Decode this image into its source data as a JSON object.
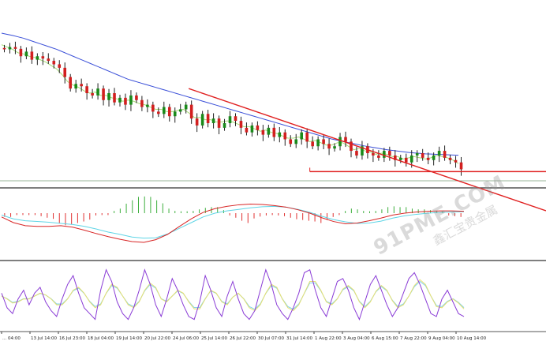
{
  "chart_data": {
    "type": "candlestick",
    "x_ticks": [
      "... 04:00",
      "13 Jul 14:00",
      "16 Jul 23:00",
      "18 Jul 04:00",
      "19 Jul 14:00",
      "20 Jul 22:00",
      "24 Jul 06:00",
      "25 Jul 14:00",
      "26 Jul 22:00",
      "30 Jul 07:00",
      "31 Jul 14:00",
      "1 Aug 22:00",
      "3 Aug 04:00",
      "6 Aug 15:00",
      "7 Aug 22:00",
      "9 Aug 04:00",
      "10 Aug 14:00"
    ],
    "price_panel": {
      "close": [
        58,
        59,
        58.2,
        55,
        57,
        53.5,
        55,
        54,
        53,
        51.5,
        50,
        46,
        41,
        43,
        42,
        39,
        38,
        41,
        36,
        39,
        35,
        37,
        34,
        38,
        36,
        33,
        34,
        31,
        30,
        33,
        29,
        31,
        32,
        34,
        28,
        25,
        30,
        26,
        28,
        24,
        26,
        29,
        27,
        24,
        22,
        25,
        23,
        21,
        24,
        20,
        22,
        19,
        17,
        19,
        22,
        18,
        16,
        19,
        17,
        15,
        16,
        20,
        18,
        14,
        12,
        16,
        13,
        12,
        11,
        14,
        12,
        10,
        11,
        9,
        12,
        13,
        11,
        10,
        12,
        14,
        11,
        10,
        9,
        6
      ],
      "ma_fast": [
        60,
        59,
        58,
        56.5,
        56,
        55,
        54.5,
        53.5,
        52.5,
        51,
        49.5,
        47,
        44,
        42.5,
        41.5,
        40,
        39,
        39.5,
        38,
        38,
        37,
        36.5,
        35.5,
        36,
        35.5,
        34.5,
        34,
        33,
        32,
        32,
        31,
        31,
        31.5,
        32,
        30.5,
        28.5,
        28.5,
        27.5,
        27.5,
        26.5,
        26.5,
        27,
        26.5,
        25.5,
        24.5,
        24.5,
        23.5,
        22.5,
        23,
        22,
        21.5,
        20.5,
        19.5,
        19.5,
        20,
        19,
        18,
        18.5,
        17.5,
        16.5,
        16.5,
        17.5,
        17.5,
        16,
        14.5,
        15,
        14,
        13.5,
        12.5,
        13,
        12.5,
        11.5,
        11.5,
        10.5,
        11,
        11.5,
        11,
        10.5,
        11,
        12,
        11.5,
        11,
        10,
        8.5
      ],
      "ma_slow": [
        65,
        64.5,
        64,
        63.4,
        62.8,
        62,
        61.2,
        60.4,
        59.6,
        58.8,
        58,
        57,
        56,
        55,
        54,
        53,
        52,
        51,
        50,
        49,
        48,
        47,
        46,
        45,
        44.3,
        43.6,
        42.9,
        42.2,
        41.5,
        40.8,
        40.1,
        39.4,
        38.7,
        38,
        37.3,
        36.6,
        35.9,
        35.2,
        34.5,
        33.8,
        33.1,
        32.4,
        31.7,
        31,
        30.3,
        29.6,
        28.9,
        28.2,
        27.5,
        26.8,
        26.1,
        25.4,
        24.7,
        24,
        23.3,
        22.6,
        21.9,
        21.2,
        20.5,
        19.8,
        19.1,
        18.6,
        18.1,
        17.6,
        17.1,
        16.6,
        16.1,
        15.7,
        15.3,
        14.9,
        14.5,
        14.2,
        13.9,
        13.6,
        13.3,
        13.1,
        12.9,
        12.7,
        12.6,
        12.5,
        12.4,
        12.3,
        12.2,
        12.1
      ],
      "trendline": {
        "from": [
          34,
          41
        ],
        "to": [
          92,
          0
        ]
      },
      "support": {
        "from": [
          56,
          5
        ],
        "to": [
          92,
          5
        ]
      }
    },
    "macd_panel": {
      "histogram": [
        -1,
        -1,
        -0.5,
        -0.5,
        -0.5,
        -0.5,
        -0.8,
        -1.2,
        -1.5,
        -2.6,
        -3.2,
        -3,
        -2.6,
        -2.2,
        -1.7,
        -0.6,
        -0.5,
        -0.5,
        0.6,
        1.2,
        2.5,
        3.4,
        4.3,
        4.4,
        4.3,
        3.4,
        2.6,
        1.2,
        0.6,
        0.5,
        0.5,
        0.6,
        1,
        1.4,
        1.6,
        1.6,
        0.8,
        -0.6,
        -1.2,
        -2,
        -2.6,
        -1.4,
        -0.9,
        -0.6,
        -0.5,
        -0.6,
        -0.8,
        -1.2,
        -1.6,
        -1.8,
        -2,
        -2.2,
        -2.6,
        -1.8,
        -1,
        -0.5,
        0.6,
        1.2,
        1,
        0.6,
        0.5,
        0.6,
        1,
        1.6,
        1.8,
        1.6,
        1.6,
        1.2,
        1,
        1,
        0.8,
        0.6,
        0.5,
        -0.6,
        -0.8,
        -1
      ],
      "signal": [
        -0.5,
        -1.5,
        -2,
        -2.2,
        -2.4,
        -2.7,
        -3,
        -3.5,
        -4.2,
        -5,
        -5.6,
        -6.3,
        -6.6,
        -6.5,
        -5.5,
        -4,
        -2.5,
        -1,
        0,
        0.6,
        1,
        1.4,
        1.7,
        1.8,
        1.6,
        1,
        0.2,
        -0.8,
        -1.7,
        -2.3,
        -2.7,
        -2.6,
        -2.1,
        -1.3,
        -0.7,
        -0.3,
        0,
        0.2,
        0.3,
        0.4
      ],
      "main": [
        -1,
        -2.5,
        -3.3,
        -3.5,
        -3.5,
        -3.3,
        -3.7,
        -4.5,
        -5.4,
        -6.2,
        -6.9,
        -7.5,
        -7.7,
        -7,
        -5.6,
        -3.5,
        -1.5,
        0.2,
        1.2,
        1.8,
        2.2,
        2.4,
        2.3,
        2,
        1.6,
        0.9,
        0,
        -1.2,
        -2.2,
        -2.8,
        -2.6,
        -2,
        -1.3,
        -0.5,
        0,
        0.3,
        0.5,
        0.6,
        0.6,
        0.5
      ]
    },
    "stoch_panel": {
      "main": [
        55,
        30,
        20,
        45,
        60,
        35,
        55,
        65,
        40,
        25,
        15,
        45,
        70,
        85,
        55,
        30,
        20,
        10,
        60,
        95,
        75,
        40,
        20,
        10,
        30,
        60,
        95,
        70,
        35,
        15,
        45,
        80,
        60,
        35,
        15,
        10,
        40,
        85,
        60,
        30,
        15,
        50,
        75,
        45,
        20,
        10,
        25,
        60,
        95,
        70,
        35,
        20,
        10,
        30,
        55,
        90,
        95,
        60,
        30,
        15,
        45,
        75,
        80,
        60,
        30,
        10,
        40,
        70,
        85,
        60,
        35,
        15,
        30,
        55,
        80,
        90,
        70,
        45,
        20,
        15,
        45,
        60,
        40,
        20,
        15
      ],
      "signal": [
        50,
        45,
        38,
        40,
        45,
        45,
        50,
        55,
        52,
        45,
        35,
        35,
        45,
        60,
        65,
        55,
        40,
        30,
        35,
        55,
        70,
        65,
        50,
        35,
        30,
        40,
        60,
        72,
        65,
        45,
        40,
        50,
        60,
        55,
        40,
        28,
        28,
        45,
        60,
        55,
        40,
        35,
        48,
        55,
        45,
        30,
        25,
        35,
        55,
        70,
        65,
        45,
        30,
        25,
        35,
        55,
        75,
        75,
        60,
        40,
        35,
        45,
        62,
        68,
        60,
        40,
        30,
        40,
        58,
        68,
        60,
        42,
        30,
        35,
        50,
        68,
        78,
        70,
        50,
        32,
        30,
        40,
        45,
        38,
        28
      ]
    }
  },
  "watermark": {
    "line1": "91PME.COM",
    "line2": "鑫汇宝贵金属"
  },
  "colors": {
    "bull": "#1a8a1a",
    "bear": "#d21f1f",
    "ma_fast": "#a8dd78",
    "ma_slow": "#3a4fd8",
    "trend": "#e02020",
    "hist_pos": "#3cae3c",
    "hist_neg": "#e03030",
    "macd_main": "#d82525",
    "macd_signal": "#5fd5e6",
    "stoch_main": "#8a3cd6",
    "stoch_signal": "#e8e070",
    "stoch_extra": "#7fd0e8",
    "divider": "#555555"
  }
}
